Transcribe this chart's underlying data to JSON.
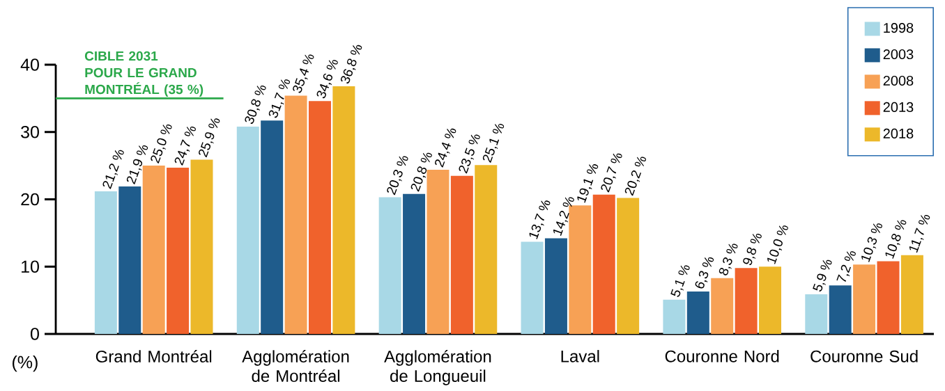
{
  "chart_data": {
    "type": "bar",
    "categories": [
      "Grand Montréal",
      "Agglomération de Montréal",
      "Agglomération de Longueuil",
      "Laval",
      "Couronne Nord",
      "Couronne Sud"
    ],
    "ylabel": "(%)",
    "ylim": [
      0,
      40
    ],
    "yticks": [
      0,
      10,
      20,
      30,
      40
    ],
    "legend": "top right",
    "series": [
      {
        "name": "1998",
        "color": "#a8d8e6",
        "values": [
          21.2,
          30.8,
          20.3,
          13.7,
          5.1,
          5.9
        ],
        "value_labels": [
          "21,2 %",
          "30,8 %",
          "20,3 %",
          "13,7 %",
          "5,1 %",
          "5,9 %"
        ]
      },
      {
        "name": "2003",
        "color": "#1f5c8c",
        "values": [
          21.9,
          31.7,
          20.8,
          14.2,
          6.3,
          7.2
        ],
        "value_labels": [
          "21,9 %",
          "31,7 %",
          "20,8 %",
          "14,2 %",
          "6,3 %",
          "7,2 %"
        ]
      },
      {
        "name": "2008",
        "color": "#f7a155",
        "values": [
          25.0,
          35.4,
          24.4,
          19.1,
          8.3,
          10.3
        ],
        "value_labels": [
          "25,0 %",
          "35,4 %",
          "24,4 %",
          "19,1 %",
          "8,3 %",
          "10,3 %"
        ]
      },
      {
        "name": "2013",
        "color": "#f0622c",
        "values": [
          24.7,
          34.6,
          23.5,
          20.7,
          9.8,
          10.8
        ],
        "value_labels": [
          "24,7 %",
          "34,6 %",
          "23,5 %",
          "20,7 %",
          "9,8 %",
          "10,8 %"
        ]
      },
      {
        "name": "2018",
        "color": "#ecb82a",
        "values": [
          25.9,
          36.8,
          25.1,
          20.2,
          10.0,
          11.7
        ],
        "value_labels": [
          "25,9 %",
          "36,8 %",
          "25,1 %",
          "20,2 %",
          "10,0 %",
          "11,7 %"
        ]
      }
    ],
    "ref_lines": [
      {
        "axis": "y",
        "value": 35,
        "label": "CIBLE 2031 POUR LE GRAND MONTRÉAL (35 %)",
        "color": "#2ba84a"
      }
    ]
  }
}
